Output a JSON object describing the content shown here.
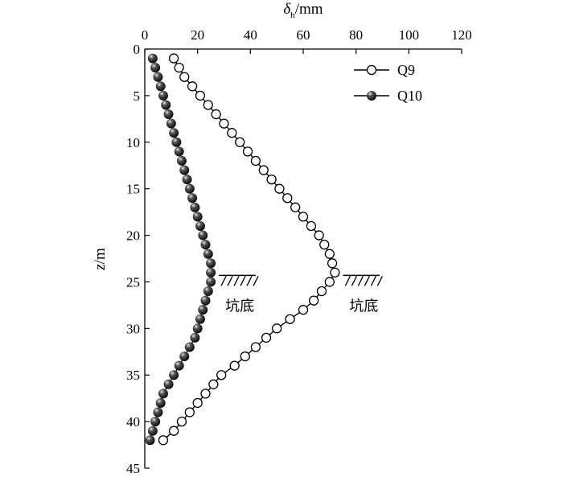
{
  "chart_data": {
    "type": "scatter",
    "x_axis": {
      "label_main": "δ",
      "label_sub": "h",
      "label_unit": "/mm",
      "position": "top",
      "range": [
        0,
        120
      ],
      "ticks": [
        "0",
        "20",
        "40",
        "60",
        "80",
        "100",
        "120"
      ]
    },
    "y_axis": {
      "label_italic": "z",
      "label_unit": "/m",
      "inverted": true,
      "range": [
        0,
        45
      ],
      "ticks": [
        "0",
        "5",
        "10",
        "15",
        "20",
        "25",
        "30",
        "35",
        "40",
        "45"
      ]
    },
    "legend_position": "top-right",
    "series": [
      {
        "name": "Q9",
        "marker": "open-circle",
        "color": "#000000",
        "points": [
          [
            11,
            1
          ],
          [
            13,
            2
          ],
          [
            15,
            3
          ],
          [
            18,
            4
          ],
          [
            21,
            5
          ],
          [
            24,
            6
          ],
          [
            27,
            7
          ],
          [
            30,
            8
          ],
          [
            33,
            9
          ],
          [
            36,
            10
          ],
          [
            39,
            11
          ],
          [
            42,
            12
          ],
          [
            45,
            13
          ],
          [
            48,
            14
          ],
          [
            51,
            15
          ],
          [
            54,
            16
          ],
          [
            57,
            17
          ],
          [
            60,
            18
          ],
          [
            63,
            19
          ],
          [
            66,
            20
          ],
          [
            68,
            21
          ],
          [
            70,
            22
          ],
          [
            71,
            23
          ],
          [
            72,
            24
          ],
          [
            70,
            25
          ],
          [
            67,
            26
          ],
          [
            64,
            27
          ],
          [
            60,
            28
          ],
          [
            55,
            29
          ],
          [
            50,
            30
          ],
          [
            46,
            31
          ],
          [
            42,
            32
          ],
          [
            38,
            33
          ],
          [
            34,
            34
          ],
          [
            29,
            35
          ],
          [
            26,
            36
          ],
          [
            23,
            37
          ],
          [
            20,
            38
          ],
          [
            17,
            39
          ],
          [
            14,
            40
          ],
          [
            11,
            41
          ],
          [
            7,
            42
          ]
        ]
      },
      {
        "name": "Q10",
        "marker": "filled-sphere",
        "color": "#222222",
        "points": [
          [
            3,
            1
          ],
          [
            4,
            2
          ],
          [
            5,
            3
          ],
          [
            6,
            4
          ],
          [
            7,
            5
          ],
          [
            8,
            6
          ],
          [
            9,
            7
          ],
          [
            10,
            8
          ],
          [
            11,
            9
          ],
          [
            12,
            10
          ],
          [
            13,
            11
          ],
          [
            14,
            12
          ],
          [
            15,
            13
          ],
          [
            16,
            14
          ],
          [
            17,
            15
          ],
          [
            18,
            16
          ],
          [
            19,
            17
          ],
          [
            20,
            18
          ],
          [
            21,
            19
          ],
          [
            22,
            20
          ],
          [
            23,
            21
          ],
          [
            24,
            22
          ],
          [
            25,
            23
          ],
          [
            25,
            24
          ],
          [
            25,
            25
          ],
          [
            24,
            26
          ],
          [
            23,
            27
          ],
          [
            22,
            28
          ],
          [
            21,
            29
          ],
          [
            20,
            30
          ],
          [
            19,
            31
          ],
          [
            17,
            32
          ],
          [
            15,
            33
          ],
          [
            13,
            34
          ],
          [
            11,
            35
          ],
          [
            9,
            36
          ],
          [
            7,
            37
          ],
          [
            6,
            38
          ],
          [
            5,
            39
          ],
          [
            4,
            40
          ],
          [
            3,
            41
          ],
          [
            2,
            42
          ]
        ]
      }
    ],
    "annotations": [
      {
        "text": "坑底",
        "series": "Q10",
        "depth": 24.3,
        "x_start": 25,
        "x_end": 42
      },
      {
        "text": "坑底",
        "series": "Q9",
        "depth": 24.3,
        "x_start": 72,
        "x_end": 89
      }
    ]
  }
}
